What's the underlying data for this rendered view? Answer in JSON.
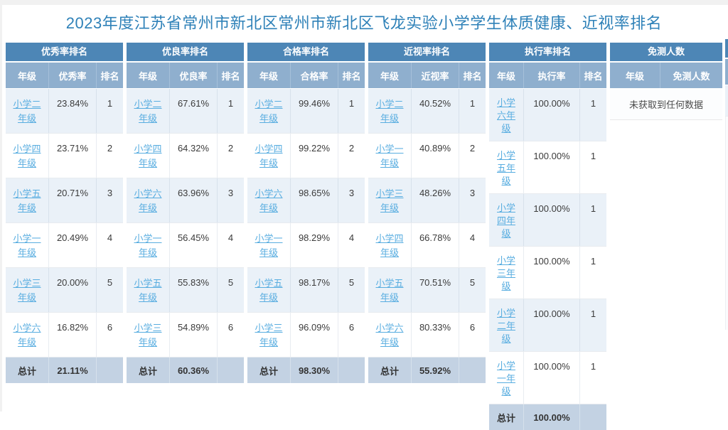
{
  "page": {
    "title": "2023年度江苏省常州市新北区常州市新北区飞龙实验小学学生体质健康、近视率排名"
  },
  "colors": {
    "title_text": "#2e81b8",
    "table_header_bg": "#4d86b6",
    "column_header_bg": "#8fafce",
    "row_alt_bg": "#eaf1f8",
    "total_row_bg": "#c3d2e3",
    "link": "#58ade0",
    "cell_text": "#3b3b3b",
    "page_edge": "#f1f1f1"
  },
  "ranking_tables": [
    {
      "title": "优秀率排名",
      "columns": [
        "年级",
        "优秀率",
        "排名"
      ],
      "rows": [
        {
          "grade": "小学二年级",
          "rate": "23.84%",
          "rank": "1"
        },
        {
          "grade": "小学四年级",
          "rate": "23.71%",
          "rank": "2"
        },
        {
          "grade": "小学五年级",
          "rate": "20.71%",
          "rank": "3"
        },
        {
          "grade": "小学一年级",
          "rate": "20.49%",
          "rank": "4"
        },
        {
          "grade": "小学三年级",
          "rate": "20.00%",
          "rank": "5"
        },
        {
          "grade": "小学六年级",
          "rate": "16.82%",
          "rank": "6"
        }
      ],
      "total": {
        "label": "总计",
        "rate": "21.11%"
      }
    },
    {
      "title": "优良率排名",
      "columns": [
        "年级",
        "优良率",
        "排名"
      ],
      "rows": [
        {
          "grade": "小学二年级",
          "rate": "67.61%",
          "rank": "1"
        },
        {
          "grade": "小学四年级",
          "rate": "64.32%",
          "rank": "2"
        },
        {
          "grade": "小学六年级",
          "rate": "63.96%",
          "rank": "3"
        },
        {
          "grade": "小学一年级",
          "rate": "56.45%",
          "rank": "4"
        },
        {
          "grade": "小学五年级",
          "rate": "55.83%",
          "rank": "5"
        },
        {
          "grade": "小学三年级",
          "rate": "54.89%",
          "rank": "6"
        }
      ],
      "total": {
        "label": "总计",
        "rate": "60.36%"
      }
    },
    {
      "title": "合格率排名",
      "columns": [
        "年级",
        "合格率",
        "排名"
      ],
      "rows": [
        {
          "grade": "小学二年级",
          "rate": "99.46%",
          "rank": "1"
        },
        {
          "grade": "小学四年级",
          "rate": "99.22%",
          "rank": "2"
        },
        {
          "grade": "小学六年级",
          "rate": "98.65%",
          "rank": "3"
        },
        {
          "grade": "小学一年级",
          "rate": "98.29%",
          "rank": "4"
        },
        {
          "grade": "小学五年级",
          "rate": "98.17%",
          "rank": "5"
        },
        {
          "grade": "小学三年级",
          "rate": "96.09%",
          "rank": "6"
        }
      ],
      "total": {
        "label": "总计",
        "rate": "98.30%"
      }
    },
    {
      "title": "近视率排名",
      "columns": [
        "年级",
        "近视率",
        "排名"
      ],
      "rows": [
        {
          "grade": "小学二年级",
          "rate": "40.52%",
          "rank": "1"
        },
        {
          "grade": "小学一年级",
          "rate": "40.89%",
          "rank": "2"
        },
        {
          "grade": "小学三年级",
          "rate": "48.26%",
          "rank": "3"
        },
        {
          "grade": "小学四年级",
          "rate": "66.78%",
          "rank": "4"
        },
        {
          "grade": "小学五年级",
          "rate": "70.51%",
          "rank": "5"
        },
        {
          "grade": "小学六年级",
          "rate": "80.33%",
          "rank": "6"
        }
      ],
      "total": {
        "label": "总计",
        "rate": "55.92%"
      }
    },
    {
      "title": "执行率排名",
      "columns": [
        "年级",
        "执行率",
        "排名"
      ],
      "rows": [
        {
          "grade": "小学六年级",
          "rate": "100.00%",
          "rank": "1"
        },
        {
          "grade": "小学五年级",
          "rate": "100.00%",
          "rank": "1"
        },
        {
          "grade": "小学四年级",
          "rate": "100.00%",
          "rank": "1"
        },
        {
          "grade": "小学三年级",
          "rate": "100.00%",
          "rank": "1"
        },
        {
          "grade": "小学二年级",
          "rate": "100.00%",
          "rank": "1"
        },
        {
          "grade": "小学一年级",
          "rate": "100.00%",
          "rank": "1"
        }
      ],
      "total": {
        "label": "总计",
        "rate": "100.00%"
      }
    }
  ],
  "exempt_table": {
    "title": "免测人数",
    "columns": [
      "年级",
      "免测人数"
    ],
    "no_data_text": "未获取到任何数据"
  }
}
